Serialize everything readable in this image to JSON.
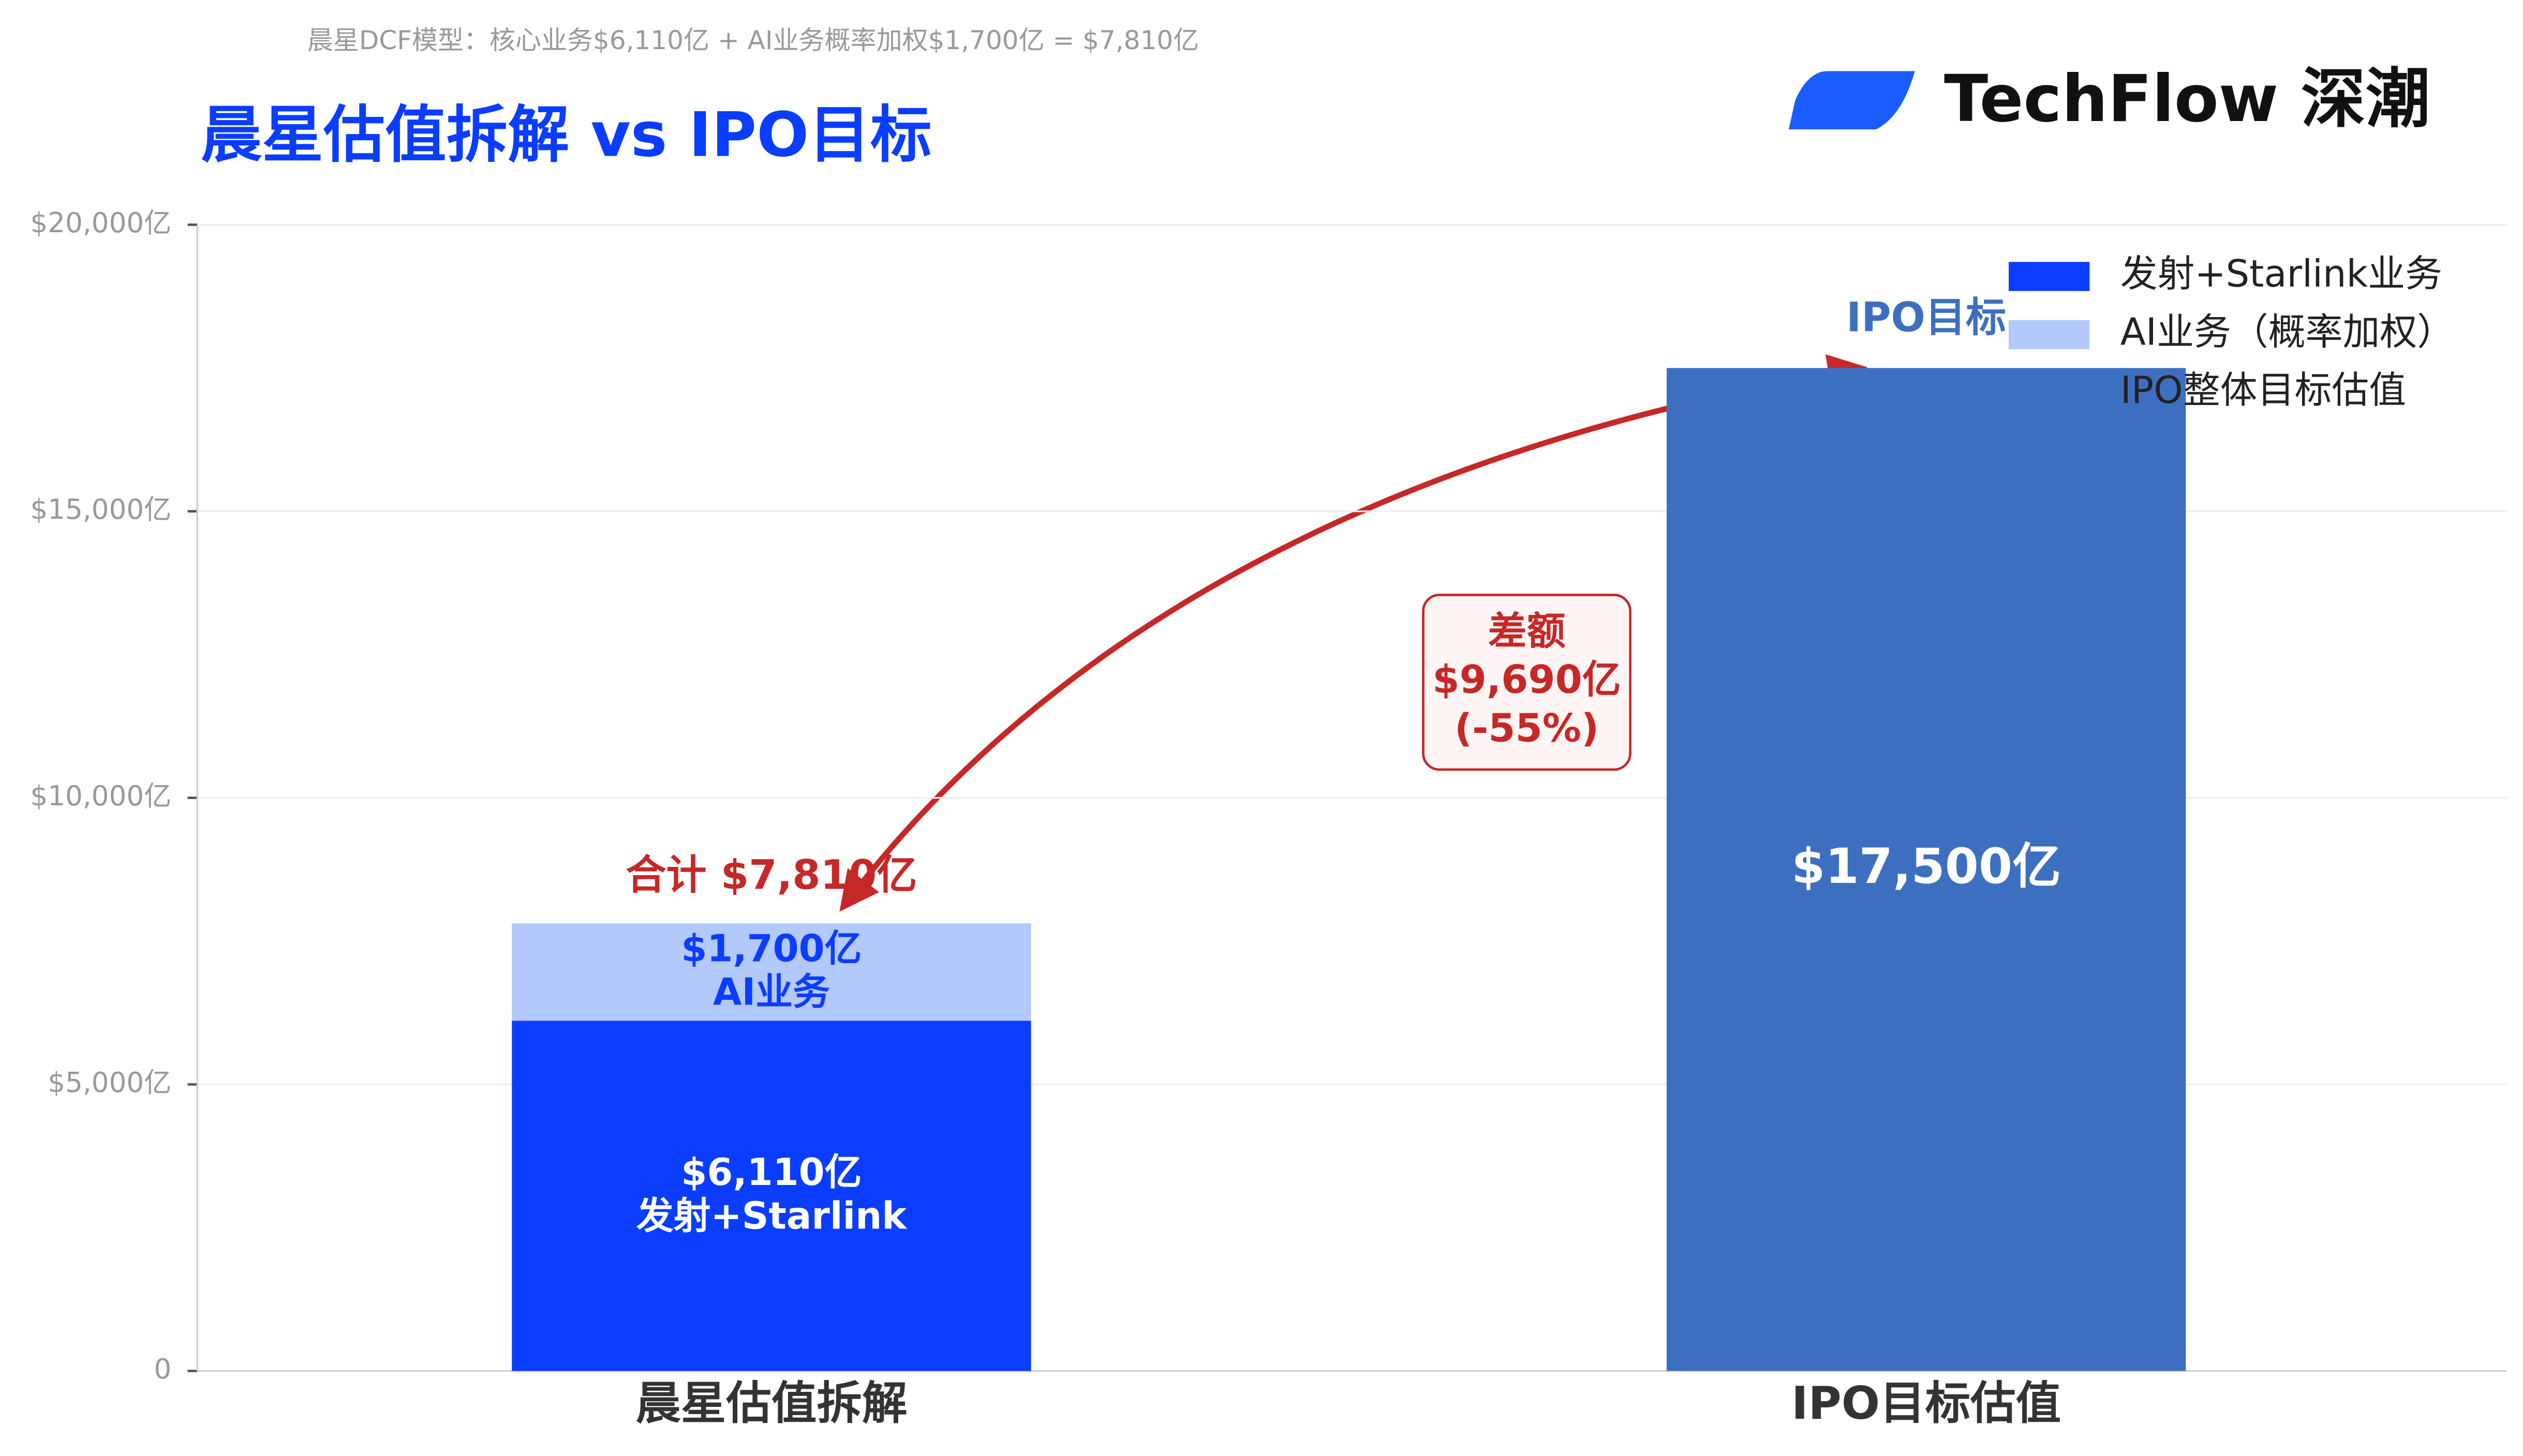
{
  "logo": "TechFlow 深潮",
  "chart_data": {
    "type": "bar",
    "stacked": true,
    "subtitle": "晨星DCF模型：核心业务$6,110亿 + AI业务概率加权$1,700亿 = $7,810亿",
    "title": "晨星估值拆解 vs IPO目标",
    "categories": [
      "晨星估值拆解",
      "IPO目标估值"
    ],
    "series": [
      {
        "name": "发射+Starlink业务",
        "color": "#0a3dff",
        "values": [
          6110,
          null
        ],
        "value_labels": [
          "$6,110亿",
          null
        ],
        "segment_label": "发射+Starlink"
      },
      {
        "name": "AI业务（概率加权）",
        "color": "#b3c8fb",
        "values": [
          1700,
          null
        ],
        "value_labels": [
          "$1,700亿",
          null
        ],
        "segment_label": "AI业务"
      },
      {
        "name": "IPO整体目标估值",
        "color": "#3d6fc1",
        "values": [
          null,
          17500
        ],
        "value_labels": [
          null,
          "$17,500亿"
        ]
      }
    ],
    "ylim": [
      0,
      20000
    ],
    "yticks": [
      0,
      {
        "value": 5000,
        "label": "$5,000亿"
      },
      {
        "value": 10000,
        "label": "$10,000亿"
      },
      {
        "value": 15000,
        "label": "$15,000亿"
      },
      {
        "value": 20000,
        "label": "$20,000亿"
      }
    ],
    "grid": true,
    "legend": "upper right",
    "annotations": {
      "total": "合计 $7,810亿",
      "target": "IPO目标",
      "gap": [
        "差额",
        "$9,690亿",
        "(-55%)"
      ]
    }
  }
}
